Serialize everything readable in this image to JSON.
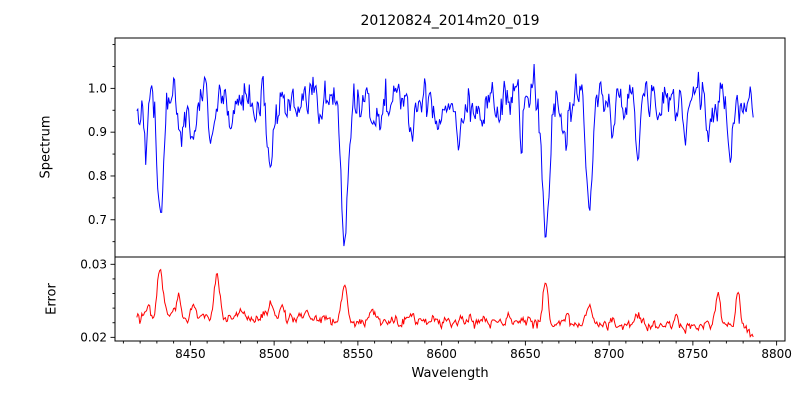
{
  "title": "20120824_2014m20_019",
  "axes": {
    "xlabel": "Wavelength",
    "spectrum_ylabel": "Spectrum",
    "error_ylabel": "Error"
  },
  "colors": {
    "spectrum_line": "#0000ff",
    "error_line": "#ff0000",
    "axis": "#000000",
    "background": "#ffffff"
  },
  "chart_data": {
    "type": "line",
    "title": "20120824_2014m20_019",
    "xlabel": "Wavelength",
    "xlim": [
      8405,
      8805
    ],
    "x_range_data": [
      8418,
      8786
    ],
    "x_ticks": [
      {
        "value": 8450,
        "label": "8450"
      },
      {
        "value": 8500,
        "label": "8500"
      },
      {
        "value": 8550,
        "label": "8550"
      },
      {
        "value": 8600,
        "label": "8600"
      },
      {
        "value": 8650,
        "label": "8650"
      },
      {
        "value": 8700,
        "label": "8700"
      },
      {
        "value": 8750,
        "label": "8750"
      },
      {
        "value": 8800,
        "label": "8800"
      }
    ],
    "n_points": 620,
    "noise_seed": 42,
    "subplots": [
      {
        "name": "spectrum",
        "ylabel": "Spectrum",
        "ylim": [
          0.615,
          1.115
        ],
        "y_ticks": [
          {
            "value": 0.7,
            "label": "0.7"
          },
          {
            "value": 0.8,
            "label": "0.8"
          },
          {
            "value": 0.9,
            "label": "0.9"
          },
          {
            "value": 1.0,
            "label": "1.0"
          }
        ],
        "y_minor_ticks": [
          0.65,
          0.75,
          0.85,
          0.95,
          1.05,
          1.1
        ],
        "baseline": 0.97,
        "noise_sigma": 0.022,
        "noise_rho": 0.55,
        "clamp": [
          0.62,
          1.095
        ],
        "absorption_lines": [
          {
            "center": 8424,
            "depth": 0.06,
            "width": 1.2
          },
          {
            "center": 8432,
            "depth": 0.25,
            "width": 1.8
          },
          {
            "center": 8445,
            "depth": 0.07,
            "width": 1.3
          },
          {
            "center": 8452,
            "depth": 0.1,
            "width": 1.4
          },
          {
            "center": 8462,
            "depth": 0.07,
            "width": 1.2
          },
          {
            "center": 8475,
            "depth": 0.06,
            "width": 1.2
          },
          {
            "center": 8498,
            "depth": 0.16,
            "width": 1.8
          },
          {
            "center": 8514,
            "depth": 0.06,
            "width": 1.3
          },
          {
            "center": 8542,
            "depth": 0.33,
            "width": 2.0
          },
          {
            "center": 8582,
            "depth": 0.07,
            "width": 1.4
          },
          {
            "center": 8598,
            "depth": 0.05,
            "width": 1.2
          },
          {
            "center": 8611,
            "depth": 0.06,
            "width": 1.3
          },
          {
            "center": 8625,
            "depth": 0.05,
            "width": 1.2
          },
          {
            "center": 8648,
            "depth": 0.06,
            "width": 1.2
          },
          {
            "center": 8662,
            "depth": 0.33,
            "width": 2.0
          },
          {
            "center": 8674,
            "depth": 0.07,
            "width": 1.3
          },
          {
            "center": 8688,
            "depth": 0.22,
            "width": 1.8
          },
          {
            "center": 8702,
            "depth": 0.06,
            "width": 1.2
          },
          {
            "center": 8717,
            "depth": 0.08,
            "width": 1.4
          },
          {
            "center": 8730,
            "depth": 0.05,
            "width": 1.2
          },
          {
            "center": 8745,
            "depth": 0.06,
            "width": 1.2
          },
          {
            "center": 8760,
            "depth": 0.07,
            "width": 1.3
          },
          {
            "center": 8772,
            "depth": 0.09,
            "width": 1.4
          }
        ]
      },
      {
        "name": "error",
        "ylabel": "Error",
        "ylim": [
          0.0195,
          0.031
        ],
        "y_ticks": [
          {
            "value": 0.02,
            "label": "0.02"
          },
          {
            "value": 0.03,
            "label": "0.03"
          }
        ],
        "y_minor_ticks": [
          0.022,
          0.024,
          0.026,
          0.028
        ],
        "baseline_start": 0.0228,
        "baseline_end": 0.0215,
        "noise_sigma": 0.00035,
        "noise_rho": 0.5,
        "clamp": [
          0.0198,
          0.0305
        ],
        "spikes": [
          {
            "center": 8425,
            "height": 0.0015,
            "width": 1.2
          },
          {
            "center": 8432,
            "height": 0.0068,
            "width": 1.5
          },
          {
            "center": 8443,
            "height": 0.0028,
            "width": 1.2
          },
          {
            "center": 8452,
            "height": 0.0018,
            "width": 1.2
          },
          {
            "center": 8466,
            "height": 0.006,
            "width": 1.5
          },
          {
            "center": 8480,
            "height": 0.0012,
            "width": 1.0
          },
          {
            "center": 8498,
            "height": 0.0018,
            "width": 1.2
          },
          {
            "center": 8505,
            "height": 0.0022,
            "width": 1.2
          },
          {
            "center": 8520,
            "height": 0.0012,
            "width": 1.0
          },
          {
            "center": 8542,
            "height": 0.005,
            "width": 1.5
          },
          {
            "center": 8558,
            "height": 0.001,
            "width": 1.0
          },
          {
            "center": 8582,
            "height": 0.0012,
            "width": 1.0
          },
          {
            "center": 8611,
            "height": 0.0012,
            "width": 1.0
          },
          {
            "center": 8640,
            "height": 0.001,
            "width": 1.0
          },
          {
            "center": 8662,
            "height": 0.0058,
            "width": 1.5
          },
          {
            "center": 8675,
            "height": 0.0015,
            "width": 1.0
          },
          {
            "center": 8688,
            "height": 0.003,
            "width": 1.3
          },
          {
            "center": 8717,
            "height": 0.0015,
            "width": 1.0
          },
          {
            "center": 8740,
            "height": 0.0012,
            "width": 1.0
          },
          {
            "center": 8765,
            "height": 0.0042,
            "width": 1.4
          },
          {
            "center": 8777,
            "height": 0.0045,
            "width": 1.3
          },
          {
            "center": 8786,
            "height": -0.0012,
            "width": 1.5
          }
        ]
      }
    ]
  }
}
